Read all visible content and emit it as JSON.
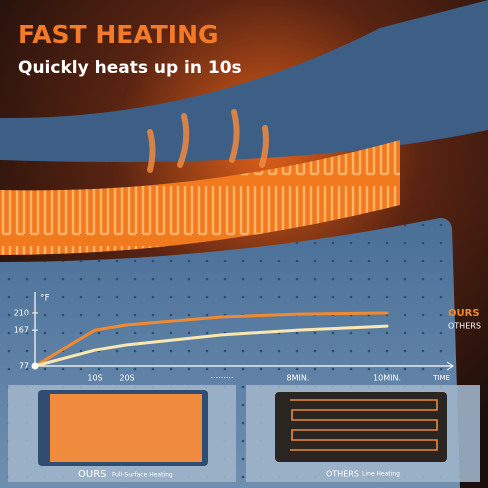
{
  "header": {
    "title": "FAST HEATING",
    "subtitle": "Quickly heats up in 10s"
  },
  "chart_data": {
    "type": "line",
    "y_label": "°F",
    "x_label": "TIME",
    "categories": [
      null,
      "10S",
      "20S",
      "·········",
      "8MIN.",
      "10MIN."
    ],
    "series": [
      {
        "name": "OURS",
        "color": "#f08a30",
        "values": [
          77,
          167,
          180,
          200,
          207,
          210
        ]
      },
      {
        "name": "OTHERS",
        "color": "#fbe6b0",
        "values": [
          77,
          117,
          130,
          155,
          167,
          177
        ]
      }
    ],
    "ylim": [
      77,
      255
    ],
    "yticks": [
      77,
      167,
      210
    ]
  },
  "panels": [
    {
      "name": "OURS",
      "caption": "Full-Surface Heating"
    },
    {
      "name": "OTHERS",
      "caption": "Line Heating"
    }
  ]
}
